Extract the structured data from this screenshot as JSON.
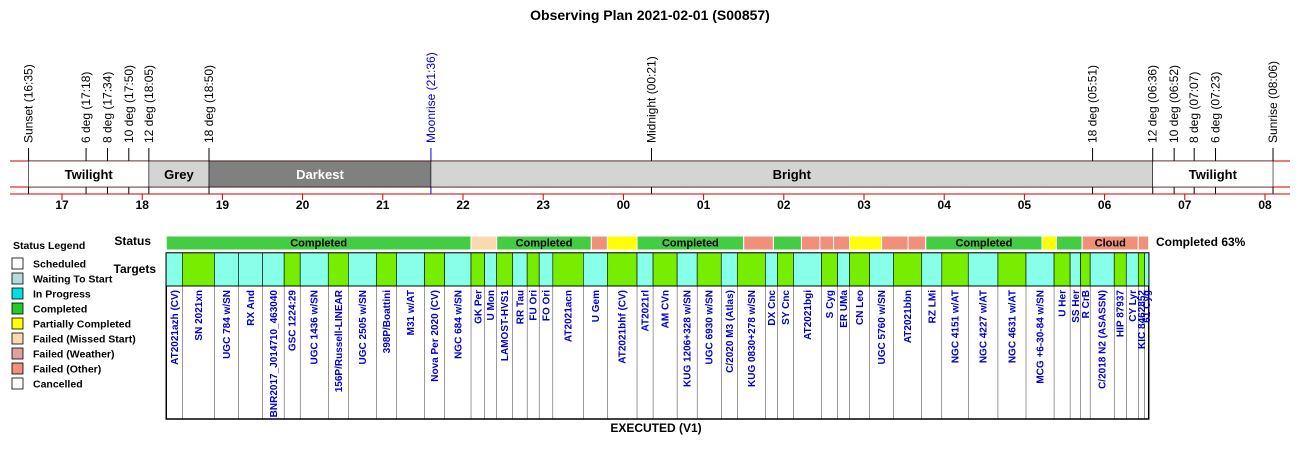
{
  "chart_data": {
    "type": "timeline",
    "title": "Observing Plan 2021-02-01 (S00857)",
    "footer": "EXECUTED (V1)",
    "hour_ticks": [
      {
        "label": "17",
        "hour": 17
      },
      {
        "label": "18",
        "hour": 18
      },
      {
        "label": "19",
        "hour": 19
      },
      {
        "label": "20",
        "hour": 20
      },
      {
        "label": "21",
        "hour": 21
      },
      {
        "label": "22",
        "hour": 22
      },
      {
        "label": "23",
        "hour": 23
      },
      {
        "label": "00",
        "hour": 24
      },
      {
        "label": "01",
        "hour": 25
      },
      {
        "label": "02",
        "hour": 26
      },
      {
        "label": "03",
        "hour": 27
      },
      {
        "label": "04",
        "hour": 28
      },
      {
        "label": "05",
        "hour": 29
      },
      {
        "label": "06",
        "hour": 30
      },
      {
        "label": "07",
        "hour": 31
      },
      {
        "label": "08",
        "hour": 32
      }
    ],
    "events": [
      {
        "label": "Sunset (16:35)",
        "hour": 16.583
      },
      {
        "label": "6 deg (17:18)",
        "hour": 17.3
      },
      {
        "label": "8 deg (17:34)",
        "hour": 17.567
      },
      {
        "label": "10 deg (17:50)",
        "hour": 17.833
      },
      {
        "label": "12 deg (18:05)",
        "hour": 18.083
      },
      {
        "label": "18 deg (18:50)",
        "hour": 18.833
      },
      {
        "label": "Moonrise (21:36)",
        "hour": 21.6,
        "color": "#0000cc"
      },
      {
        "label": "Midnight (00:21)",
        "hour": 24.35
      },
      {
        "label": "18 deg (05:51)",
        "hour": 29.85
      },
      {
        "label": "12 deg (06:36)",
        "hour": 30.6
      },
      {
        "label": "10 deg (06:52)",
        "hour": 30.867
      },
      {
        "label": "8 deg (07:07)",
        "hour": 31.117
      },
      {
        "label": "6 deg (07:23)",
        "hour": 31.383
      },
      {
        "label": "Sunrise (08:06)",
        "hour": 32.1
      }
    ],
    "sky_bands": [
      {
        "label": "Twilight",
        "start": 16.583,
        "end": 18.083,
        "color": "#ffffff",
        "text_color": "#000000"
      },
      {
        "label": "Grey",
        "start": 18.083,
        "end": 18.833,
        "color": "#d4d4d4",
        "text_color": "#000000"
      },
      {
        "label": "Darkest",
        "start": 18.833,
        "end": 21.6,
        "color": "#808080",
        "text_color": "#ffffff"
      },
      {
        "label": "Bright",
        "start": 21.6,
        "end": 30.6,
        "color": "#d4d4d4",
        "text_color": "#000000"
      },
      {
        "label": "Twilight",
        "start": 30.6,
        "end": 32.1,
        "color": "#ffffff",
        "text_color": "#000000"
      }
    ],
    "status_row_label": "Status",
    "targets_row_label": "Targets",
    "completion_text": "Completed 63%",
    "status_segments": [
      {
        "start": 18.3,
        "end": 22.1,
        "status": "Completed",
        "label": "Completed"
      },
      {
        "start": 22.1,
        "end": 22.42,
        "status": "Failed (Missed Start)",
        "label": ""
      },
      {
        "start": 22.42,
        "end": 23.6,
        "status": "Completed",
        "label": "Completed"
      },
      {
        "start": 23.6,
        "end": 23.8,
        "status": "Failed (Other)",
        "label": ""
      },
      {
        "start": 23.8,
        "end": 24.17,
        "status": "Partially Completed",
        "label": ""
      },
      {
        "start": 24.17,
        "end": 25.5,
        "status": "Completed",
        "label": "Completed"
      },
      {
        "start": 25.5,
        "end": 25.87,
        "status": "Failed (Other)",
        "label": ""
      },
      {
        "start": 25.87,
        "end": 26.22,
        "status": "Completed",
        "label": ""
      },
      {
        "start": 26.22,
        "end": 26.45,
        "status": "Failed (Other)",
        "label": ""
      },
      {
        "start": 26.45,
        "end": 26.62,
        "status": "Failed (Other)",
        "label": ""
      },
      {
        "start": 26.62,
        "end": 26.82,
        "status": "Failed (Other)",
        "label": ""
      },
      {
        "start": 26.82,
        "end": 27.22,
        "status": "Partially Completed",
        "label": ""
      },
      {
        "start": 27.22,
        "end": 27.55,
        "status": "Failed (Other)",
        "label": ""
      },
      {
        "start": 27.55,
        "end": 27.77,
        "status": "Failed (Other)",
        "label": ""
      },
      {
        "start": 27.77,
        "end": 29.22,
        "status": "Completed",
        "label": "Completed"
      },
      {
        "start": 29.22,
        "end": 29.4,
        "status": "Partially Completed",
        "label": ""
      },
      {
        "start": 29.4,
        "end": 29.72,
        "status": "Completed",
        "label": ""
      },
      {
        "start": 29.72,
        "end": 30.42,
        "status": "Failed (Other)",
        "label": "Cloud"
      },
      {
        "start": 30.42,
        "end": 30.55,
        "status": "Failed (Other)",
        "label": ""
      }
    ],
    "targets": [
      {
        "name": "AT2021azh (CV)",
        "start": 18.3,
        "end": 18.5,
        "status": "Waiting To Start"
      },
      {
        "name": "SN 2021xn",
        "start": 18.5,
        "end": 18.9,
        "status": "Completed"
      },
      {
        "name": "UGC 784 w/SN",
        "start": 18.9,
        "end": 19.2,
        "status": "Waiting To Start"
      },
      {
        "name": "RX And",
        "start": 19.2,
        "end": 19.5,
        "status": "Waiting To Start"
      },
      {
        "name": "BNR2017_J014710_463040",
        "start": 19.5,
        "end": 19.77,
        "status": "Waiting To Start"
      },
      {
        "name": "GSC 1224:29",
        "start": 19.77,
        "end": 19.97,
        "status": "Completed"
      },
      {
        "name": "UGC 1436 w/SN",
        "start": 19.97,
        "end": 20.32,
        "status": "Waiting To Start"
      },
      {
        "name": "156P/Russell-LINEAR",
        "start": 20.32,
        "end": 20.57,
        "status": "Completed"
      },
      {
        "name": "UGC 2505 w/SN",
        "start": 20.57,
        "end": 20.92,
        "status": "Waiting To Start"
      },
      {
        "name": "398P/Boattini",
        "start": 20.92,
        "end": 21.17,
        "status": "Completed"
      },
      {
        "name": "M31 w/AT",
        "start": 21.17,
        "end": 21.52,
        "status": "Waiting To Start"
      },
      {
        "name": "Nova Per 2020 (CV)",
        "start": 21.52,
        "end": 21.77,
        "status": "Completed"
      },
      {
        "name": "NGC 684 w/SN",
        "start": 21.77,
        "end": 22.1,
        "status": "Waiting To Start"
      },
      {
        "name": "GK Per",
        "start": 22.1,
        "end": 22.27,
        "status": "Completed"
      },
      {
        "name": "U Mon",
        "start": 22.27,
        "end": 22.42,
        "status": "Waiting To Start"
      },
      {
        "name": "LAMOST-HVS1",
        "start": 22.42,
        "end": 22.62,
        "status": "Completed"
      },
      {
        "name": "RR Tau",
        "start": 22.62,
        "end": 22.8,
        "status": "Waiting To Start"
      },
      {
        "name": "FU Ori",
        "start": 22.8,
        "end": 22.95,
        "status": "Completed"
      },
      {
        "name": "FO Ori",
        "start": 22.95,
        "end": 23.12,
        "status": "Waiting To Start"
      },
      {
        "name": "AT2021acn",
        "start": 23.12,
        "end": 23.5,
        "status": "Completed"
      },
      {
        "name": "U Gem",
        "start": 23.5,
        "end": 23.8,
        "status": "Waiting To Start"
      },
      {
        "name": "AT2021bhf (CV)",
        "start": 23.8,
        "end": 24.17,
        "status": "Completed"
      },
      {
        "name": "AT2021rl",
        "start": 24.17,
        "end": 24.37,
        "status": "Waiting To Start"
      },
      {
        "name": "AM CVn",
        "start": 24.37,
        "end": 24.67,
        "status": "Completed"
      },
      {
        "name": "KUG 1206+328 w/SN",
        "start": 24.67,
        "end": 24.92,
        "status": "Waiting To Start"
      },
      {
        "name": "UGC 6930 w/SN",
        "start": 24.92,
        "end": 25.22,
        "status": "Completed"
      },
      {
        "name": "C/2020 M3 (Atlas)",
        "start": 25.22,
        "end": 25.42,
        "status": "Waiting To Start"
      },
      {
        "name": "KUG 0830+278 w/SN",
        "start": 25.42,
        "end": 25.77,
        "status": "Completed"
      },
      {
        "name": "DX Cnc",
        "start": 25.77,
        "end": 25.92,
        "status": "Waiting To Start"
      },
      {
        "name": "SY Cnc",
        "start": 25.92,
        "end": 26.12,
        "status": "Completed"
      },
      {
        "name": "AT2021bgi",
        "start": 26.12,
        "end": 26.47,
        "status": "Waiting To Start"
      },
      {
        "name": "S Cyg",
        "start": 26.47,
        "end": 26.67,
        "status": "Completed"
      },
      {
        "name": "ER UMa",
        "start": 26.67,
        "end": 26.82,
        "status": "Waiting To Start"
      },
      {
        "name": "CN Leo",
        "start": 26.82,
        "end": 27.07,
        "status": "Completed"
      },
      {
        "name": "UGC 5760 w/SN",
        "start": 27.07,
        "end": 27.37,
        "status": "Waiting To Start"
      },
      {
        "name": "AT2021bbn",
        "start": 27.37,
        "end": 27.72,
        "status": "Completed"
      },
      {
        "name": "RZ LMi",
        "start": 27.72,
        "end": 27.97,
        "status": "Waiting To Start"
      },
      {
        "name": "NGC 4151 w/AT",
        "start": 27.97,
        "end": 28.3,
        "status": "Completed"
      },
      {
        "name": "NGC 4227 w/AT",
        "start": 28.3,
        "end": 28.67,
        "status": "Waiting To Start"
      },
      {
        "name": "NGC 4631 w/AT",
        "start": 28.67,
        "end": 29.02,
        "status": "Completed"
      },
      {
        "name": "MCG +6-30-84 w/SN",
        "start": 29.02,
        "end": 29.37,
        "status": "Waiting To Start"
      },
      {
        "name": "U Her",
        "start": 29.37,
        "end": 29.57,
        "status": "Completed"
      },
      {
        "name": "SS Her",
        "start": 29.57,
        "end": 29.7,
        "status": "Waiting To Start"
      },
      {
        "name": "R CrB",
        "start": 29.7,
        "end": 29.82,
        "status": "Completed"
      },
      {
        "name": "C/2018 N2 (ASASSN)",
        "start": 29.82,
        "end": 30.12,
        "status": "Waiting To Start"
      },
      {
        "name": "HIP 87937",
        "start": 30.12,
        "end": 30.27,
        "status": "Completed"
      },
      {
        "name": "CY Lyr",
        "start": 30.27,
        "end": 30.42,
        "status": "Waiting To Start"
      },
      {
        "name": "KIC 8462852",
        "start": 30.42,
        "end": 30.5,
        "status": "Completed"
      },
      {
        "name": "61 Cyg",
        "start": 30.5,
        "end": 30.55,
        "status": "Waiting To Start"
      }
    ],
    "legend_title": "Status Legend",
    "legend": [
      {
        "label": "Scheduled",
        "color": "#ffffff"
      },
      {
        "label": "Waiting To Start",
        "color": "#b4dcdc"
      },
      {
        "label": "In Progress",
        "color": "#00e0e0"
      },
      {
        "label": "Completed",
        "color": "#22cc22"
      },
      {
        "label": "Partially Completed",
        "color": "#ffff00"
      },
      {
        "label": "Failed (Missed Start)",
        "color": "#fcd8b0"
      },
      {
        "label": "Failed (Weather)",
        "color": "#e0a0a0"
      },
      {
        "label": "Failed (Other)",
        "color": "#f0907a"
      },
      {
        "label": "Cancelled",
        "color": "#ffffff"
      }
    ],
    "colors": {
      "status_completed": "#44cc44",
      "status_partial": "#ffff00",
      "status_missed": "#fcd8b0",
      "status_other": "#f0907a",
      "target_waiting": "#88ffe8",
      "target_completed": "#77ee00",
      "axis_line": "#cc0000"
    }
  }
}
